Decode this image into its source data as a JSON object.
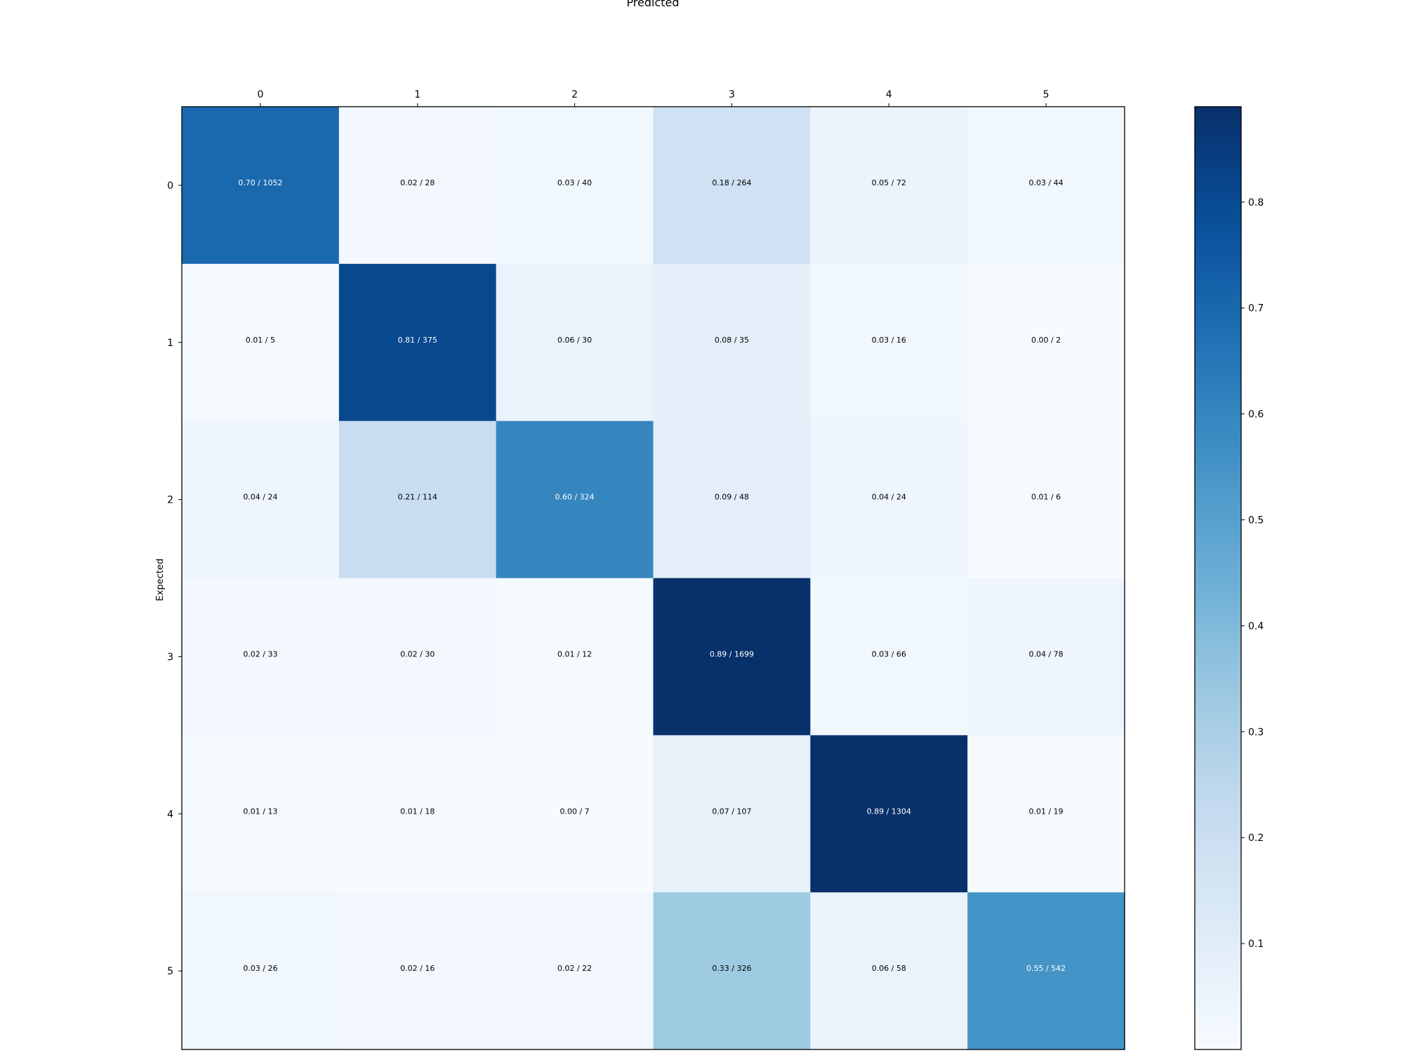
{
  "chart_data": {
    "type": "heatmap",
    "title": "Predicted",
    "xlabel": "Predicted",
    "ylabel": "Expected",
    "x_categories": [
      "0",
      "1",
      "2",
      "3",
      "4",
      "5"
    ],
    "y_categories": [
      "0",
      "1",
      "2",
      "3",
      "4",
      "5"
    ],
    "values": [
      [
        0.7,
        0.02,
        0.03,
        0.18,
        0.05,
        0.03
      ],
      [
        0.01,
        0.81,
        0.06,
        0.08,
        0.03,
        0.0
      ],
      [
        0.04,
        0.21,
        0.6,
        0.09,
        0.04,
        0.01
      ],
      [
        0.02,
        0.02,
        0.01,
        0.89,
        0.03,
        0.04
      ],
      [
        0.01,
        0.01,
        0.0,
        0.07,
        0.89,
        0.01
      ],
      [
        0.03,
        0.02,
        0.02,
        0.33,
        0.06,
        0.55
      ]
    ],
    "cell_labels": [
      [
        "0.70 / 1052",
        "0.02 / 28",
        "0.03 / 40",
        "0.18 / 264",
        "0.05 / 72",
        "0.03 / 44"
      ],
      [
        "0.01 / 5",
        "0.81 / 375",
        "0.06 / 30",
        "0.08 / 35",
        "0.03 / 16",
        "0.00 / 2"
      ],
      [
        "0.04 / 24",
        "0.21 / 114",
        "0.60 / 324",
        "0.09 / 48",
        "0.04 / 24",
        "0.01 / 6"
      ],
      [
        "0.02 / 33",
        "0.02 / 30",
        "0.01 / 12",
        "0.89 / 1699",
        "0.03 / 66",
        "0.04 / 78"
      ],
      [
        "0.01 / 13",
        "0.01 / 18",
        "0.00 / 7",
        "0.07 / 107",
        "0.89 / 1304",
        "0.01 / 19"
      ],
      [
        "0.03 / 26",
        "0.02 / 16",
        "0.02 / 22",
        "0.33 / 326",
        "0.06 / 58",
        "0.55 / 542"
      ]
    ],
    "colormap": "Blues",
    "color_range": [
      0.0,
      0.89
    ],
    "colorbar_ticks": [
      "0.1",
      "0.2",
      "0.3",
      "0.4",
      "0.5",
      "0.6",
      "0.7",
      "0.8"
    ],
    "colorbar_tick_values": [
      0.1,
      0.2,
      0.3,
      0.4,
      0.5,
      0.6,
      0.7,
      0.8
    ],
    "x_axis_position": "top",
    "grid": false,
    "legend": "colorbar-right"
  }
}
